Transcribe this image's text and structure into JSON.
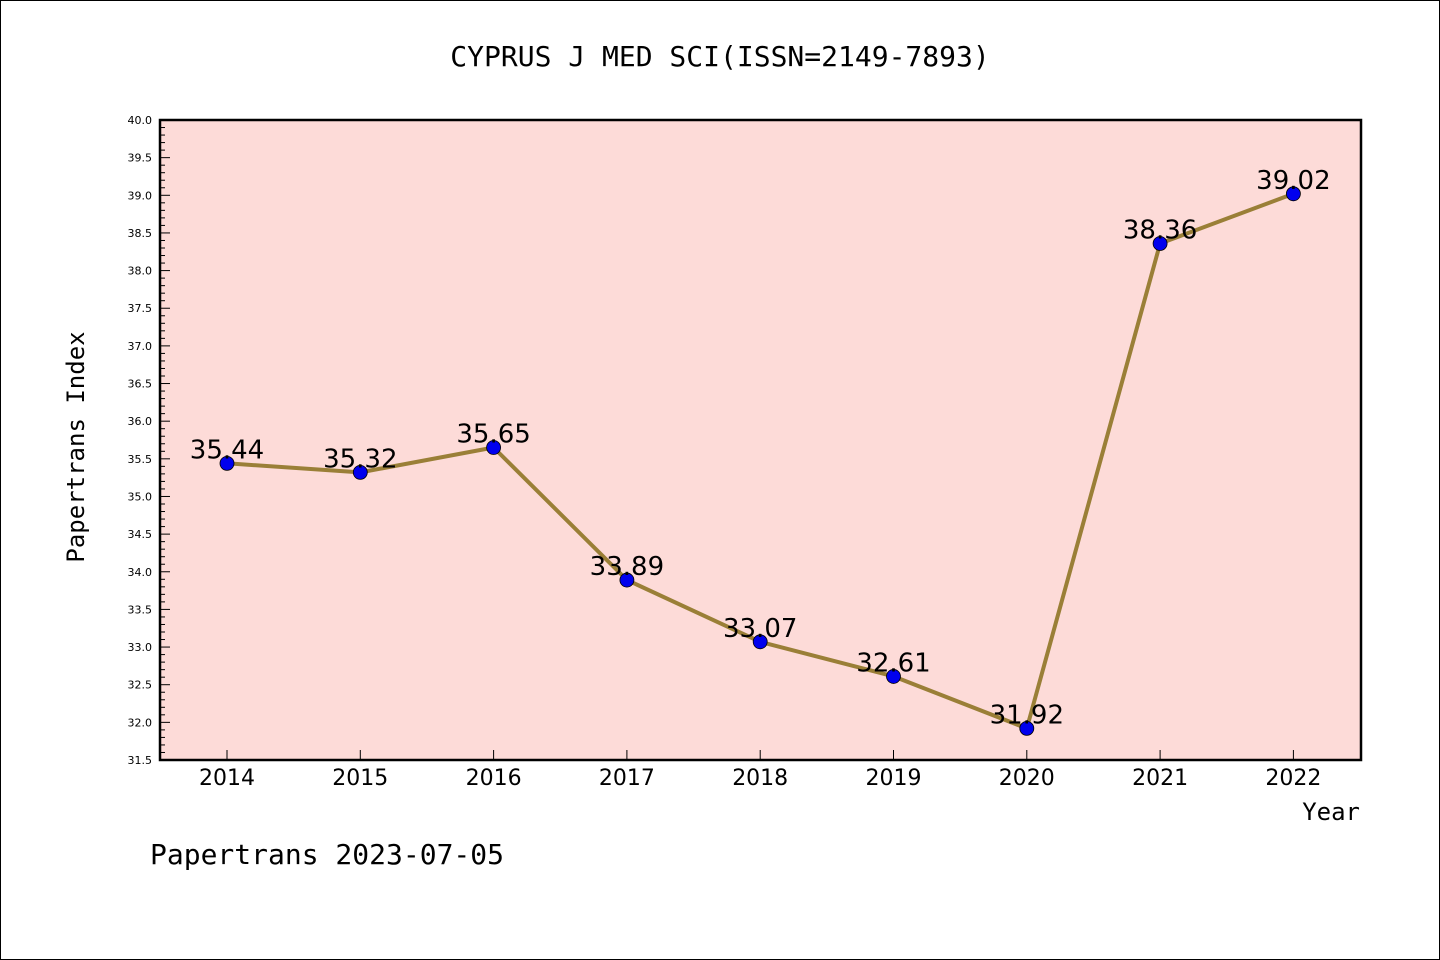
{
  "chart_data": {
    "type": "line",
    "title": "CYPRUS J MED SCI(ISSN=2149-7893)",
    "xlabel": "Year",
    "ylabel": "Papertrans Index",
    "categories": [
      "2014",
      "2015",
      "2016",
      "2017",
      "2018",
      "2019",
      "2020",
      "2021",
      "2022"
    ],
    "series": [
      {
        "values": [
          35.44,
          35.32,
          35.65,
          33.89,
          33.07,
          32.61,
          31.92,
          38.36,
          39.02
        ]
      }
    ],
    "data_labels": [
      "35.44",
      "35.32",
      "35.65",
      "33.89",
      "33.07",
      "32.61",
      "31.92",
      "38.36",
      "39.02"
    ],
    "ylim": [
      31.5,
      40.0
    ],
    "yticks": [
      "31.5",
      "32.0",
      "32.5",
      "33.0",
      "33.5",
      "34.0",
      "34.5",
      "35.0",
      "35.5",
      "36.0",
      "36.5",
      "37.0",
      "37.5",
      "38.0",
      "38.5",
      "39.0",
      "39.5",
      "40.0"
    ],
    "grid": false,
    "colors": {
      "plot_background": "#fddbd8",
      "line": "#9a7f37",
      "marker": "#0000ee"
    }
  },
  "footer": "Papertrans 2023-07-05"
}
